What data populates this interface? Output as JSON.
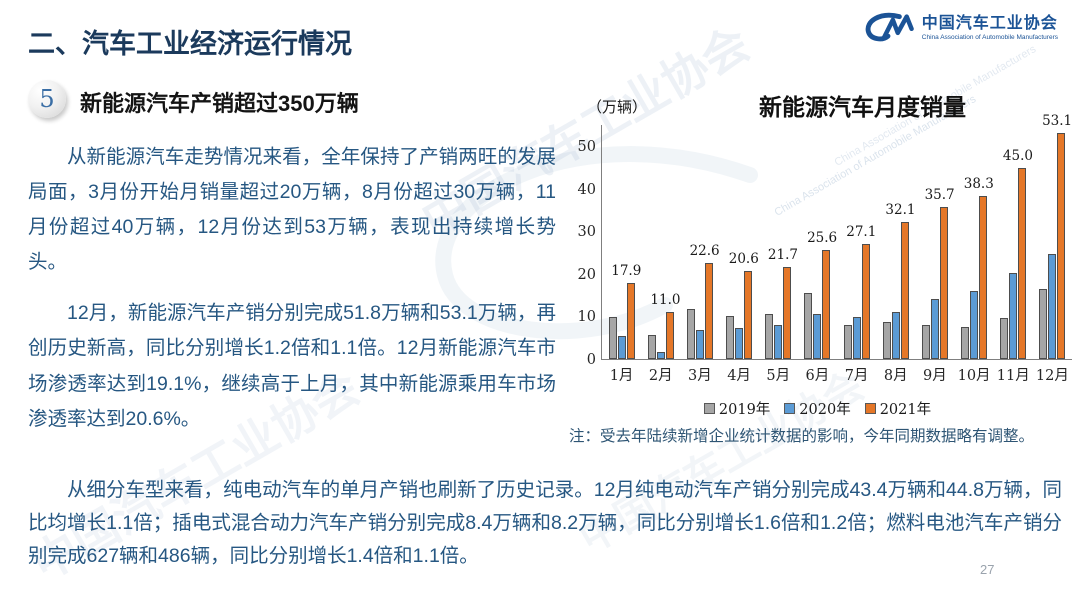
{
  "header": {
    "title": "二、汽车工业经济运行情况",
    "page_number": "27"
  },
  "logo": {
    "name_cn": "中国汽车工业协会",
    "name_en": "China Association of Automobile Manufacturers",
    "color": "#1B5396"
  },
  "watermark": {
    "text_cn": "中国汽车工业协会",
    "text_en": "China Association of Automobile Manufacturers"
  },
  "section": {
    "badge": "5",
    "heading": "新能源汽车产销超过350万辆"
  },
  "paragraphs": {
    "p1": "从新能源汽车走势情况来看，全年保持了产销两旺的发展局面，3月份开始月销量超过20万辆，8月份超过30万辆，11月份超过40万辆，12月份达到53万辆，表现出持续增长势头。",
    "p2": "12月，新能源汽车产销分别完成51.8万辆和53.1万辆，再创历史新高，同比分别增长1.2倍和1.1倍。12月新能源汽车市场渗透率达到19.1%，继续高于上月，其中新能源乘用车市场渗透率达到20.6%。",
    "p3": "从细分车型来看，纯电动汽车的单月产销也刷新了历史记录。12月纯电动汽车产销分别完成43.4万辆和44.8万辆，同比均增长1.1倍；插电式混合动力汽车产销分别完成8.4万辆和8.2万辆，同比分别增长1.6倍和1.2倍；燃料电池汽车产销分别完成627辆和486辆，同比分别增长1.4倍和1.1倍。"
  },
  "chart_data": {
    "type": "bar",
    "title": "新能源汽车月度销量",
    "unit_label": "（万辆）",
    "note": "注：受去年陆续新增企业统计数据的影响，今年同期数据略有调整。",
    "categories": [
      "1月",
      "2月",
      "3月",
      "4月",
      "5月",
      "6月",
      "7月",
      "8月",
      "9月",
      "10月",
      "11月",
      "12月"
    ],
    "series": [
      {
        "name": "2019年",
        "color": "#A6A6A6",
        "data_labels": false,
        "values": [
          9.8,
          5.6,
          11.8,
          10.1,
          10.6,
          15.5,
          8.0,
          8.7,
          8.1,
          7.6,
          9.6,
          16.5
        ]
      },
      {
        "name": "2020年",
        "color": "#5B9BD5",
        "data_labels": false,
        "values": [
          5.4,
          1.7,
          6.9,
          7.4,
          8.1,
          10.5,
          9.9,
          11.0,
          14.1,
          16.1,
          20.1,
          24.8
        ]
      },
      {
        "name": "2021年",
        "color": "#E57728",
        "data_labels": true,
        "values": [
          17.9,
          11.0,
          22.6,
          20.6,
          21.7,
          25.6,
          27.1,
          32.1,
          35.7,
          38.3,
          45.0,
          53.1
        ]
      }
    ],
    "y_ticks": [
      0,
      10,
      20,
      30,
      40,
      50
    ],
    "ylim": [
      0,
      55
    ],
    "ylabel": "",
    "xlabel": "",
    "grid": false,
    "legend_position": "bottom"
  },
  "colors": {
    "heading_navy": "#1B3A5C",
    "body_text_blue": "#265782",
    "badge_number_blue": "#3A6EA5"
  }
}
